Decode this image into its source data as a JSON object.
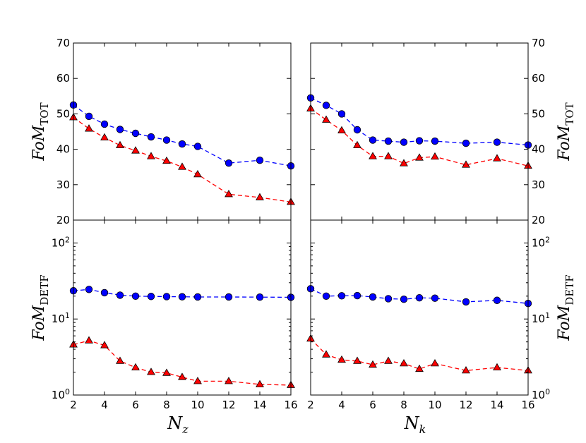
{
  "chart_data": {
    "type": "line",
    "panels": [
      {
        "id": "tot-nz",
        "ylabel": "FoM_TOT",
        "ylabel_main": "FoM",
        "ylabel_sub": "TOT",
        "yscale": "linear",
        "ylim": [
          20,
          70
        ],
        "yticks": [
          20,
          30,
          40,
          50,
          60,
          70
        ],
        "ytick_labels": [
          "20",
          "30",
          "40",
          "50",
          "60",
          "70"
        ],
        "xlim": [
          2,
          16
        ],
        "series": [
          {
            "marker": "circle",
            "color": "#0000ff",
            "x": [
              2,
              3,
              4,
              5,
              6,
              7,
              8,
              9,
              10,
              12,
              14,
              16
            ],
            "y": [
              52.5,
              49.3,
              47.1,
              45.6,
              44.5,
              43.5,
              42.6,
              41.5,
              40.8,
              36.1,
              36.9,
              35.3
            ]
          },
          {
            "marker": "triangle",
            "color": "#ff0000",
            "x": [
              2,
              3,
              4,
              5,
              6,
              7,
              8,
              9,
              10,
              12,
              14,
              16
            ],
            "y": [
              49.0,
              45.8,
              43.3,
              41.1,
              39.6,
              38.0,
              36.7,
              35.0,
              32.9,
              27.3,
              26.4,
              25.1
            ]
          }
        ]
      },
      {
        "id": "tot-nk",
        "ylabel": "FoM_TOT",
        "ylabel_main": "FoM",
        "ylabel_sub": "TOT",
        "yscale": "linear",
        "ylim": [
          20,
          70
        ],
        "yticks": [
          20,
          30,
          40,
          50,
          60,
          70
        ],
        "ytick_labels": [
          "20",
          "30",
          "40",
          "50",
          "60",
          "70"
        ],
        "xlim": [
          2,
          16
        ],
        "series": [
          {
            "marker": "circle",
            "color": "#0000ff",
            "x": [
              2,
              3,
              4,
              5,
              6,
              7,
              8,
              9,
              10,
              12,
              14,
              16
            ],
            "y": [
              54.5,
              52.4,
              50.0,
              45.5,
              42.6,
              42.3,
              42.0,
              42.4,
              42.3,
              41.7,
              42.0,
              41.2
            ]
          },
          {
            "marker": "triangle",
            "color": "#ff0000",
            "x": [
              2,
              3,
              4,
              5,
              6,
              7,
              8,
              9,
              10,
              12,
              14,
              16
            ],
            "y": [
              51.5,
              48.3,
              45.3,
              41.1,
              38.0,
              38.0,
              36.0,
              37.6,
              37.9,
              35.6,
              37.4,
              35.3
            ]
          }
        ]
      },
      {
        "id": "detf-nz",
        "ylabel": "FoM_DETF",
        "ylabel_main": "FoM",
        "ylabel_sub": "DETF",
        "yscale": "log",
        "ylim": [
          1,
          200
        ],
        "yticks": [
          1,
          10,
          100
        ],
        "ytick_labels": [
          {
            "base": "10",
            "exp": "0"
          },
          {
            "base": "10",
            "exp": "1"
          },
          {
            "base": "10",
            "exp": "2"
          }
        ],
        "xlim": [
          2,
          16
        ],
        "series": [
          {
            "marker": "circle",
            "color": "#0000ff",
            "x": [
              2,
              3,
              4,
              5,
              6,
              7,
              8,
              9,
              10,
              12,
              14,
              16
            ],
            "y": [
              23.5,
              24.5,
              22.2,
              20.6,
              20.0,
              19.8,
              19.7,
              19.6,
              19.5,
              19.5,
              19.4,
              19.3
            ]
          },
          {
            "marker": "triangle",
            "color": "#ff0000",
            "x": [
              2,
              3,
              4,
              5,
              6,
              7,
              8,
              9,
              10,
              12,
              14,
              16
            ],
            "y": [
              4.6,
              5.2,
              4.5,
              2.8,
              2.3,
              2.0,
              1.95,
              1.72,
              1.52,
              1.52,
              1.38,
              1.35
            ]
          }
        ]
      },
      {
        "id": "detf-nk",
        "ylabel": "FoM_DETF",
        "ylabel_main": "FoM",
        "ylabel_sub": "DETF",
        "yscale": "log",
        "ylim": [
          1,
          200
        ],
        "yticks": [
          1,
          10,
          100
        ],
        "ytick_labels": [
          {
            "base": "10",
            "exp": "0"
          },
          {
            "base": "10",
            "exp": "1"
          },
          {
            "base": "10",
            "exp": "2"
          }
        ],
        "xlim": [
          2,
          16
        ],
        "series": [
          {
            "marker": "circle",
            "color": "#0000ff",
            "x": [
              2,
              3,
              4,
              5,
              6,
              7,
              8,
              9,
              10,
              12,
              14,
              16
            ],
            "y": [
              25.0,
              20.0,
              20.2,
              20.3,
              19.5,
              18.5,
              18.2,
              19.0,
              18.8,
              16.8,
              17.6,
              16.0
            ]
          },
          {
            "marker": "triangle",
            "color": "#ff0000",
            "x": [
              2,
              3,
              4,
              5,
              6,
              7,
              8,
              9,
              10,
              12,
              14,
              16
            ],
            "y": [
              5.5,
              3.4,
              2.9,
              2.8,
              2.5,
              2.8,
              2.6,
              2.2,
              2.6,
              2.1,
              2.3,
              2.1
            ]
          }
        ]
      }
    ],
    "xticks": [
      2,
      4,
      6,
      8,
      10,
      12,
      14,
      16
    ],
    "xtick_labels": [
      "2",
      "4",
      "6",
      "8",
      "10",
      "12",
      "14",
      "16"
    ],
    "xlabels": [
      {
        "main": "N",
        "sub": "z"
      },
      {
        "main": "N",
        "sub": "k"
      }
    ]
  }
}
